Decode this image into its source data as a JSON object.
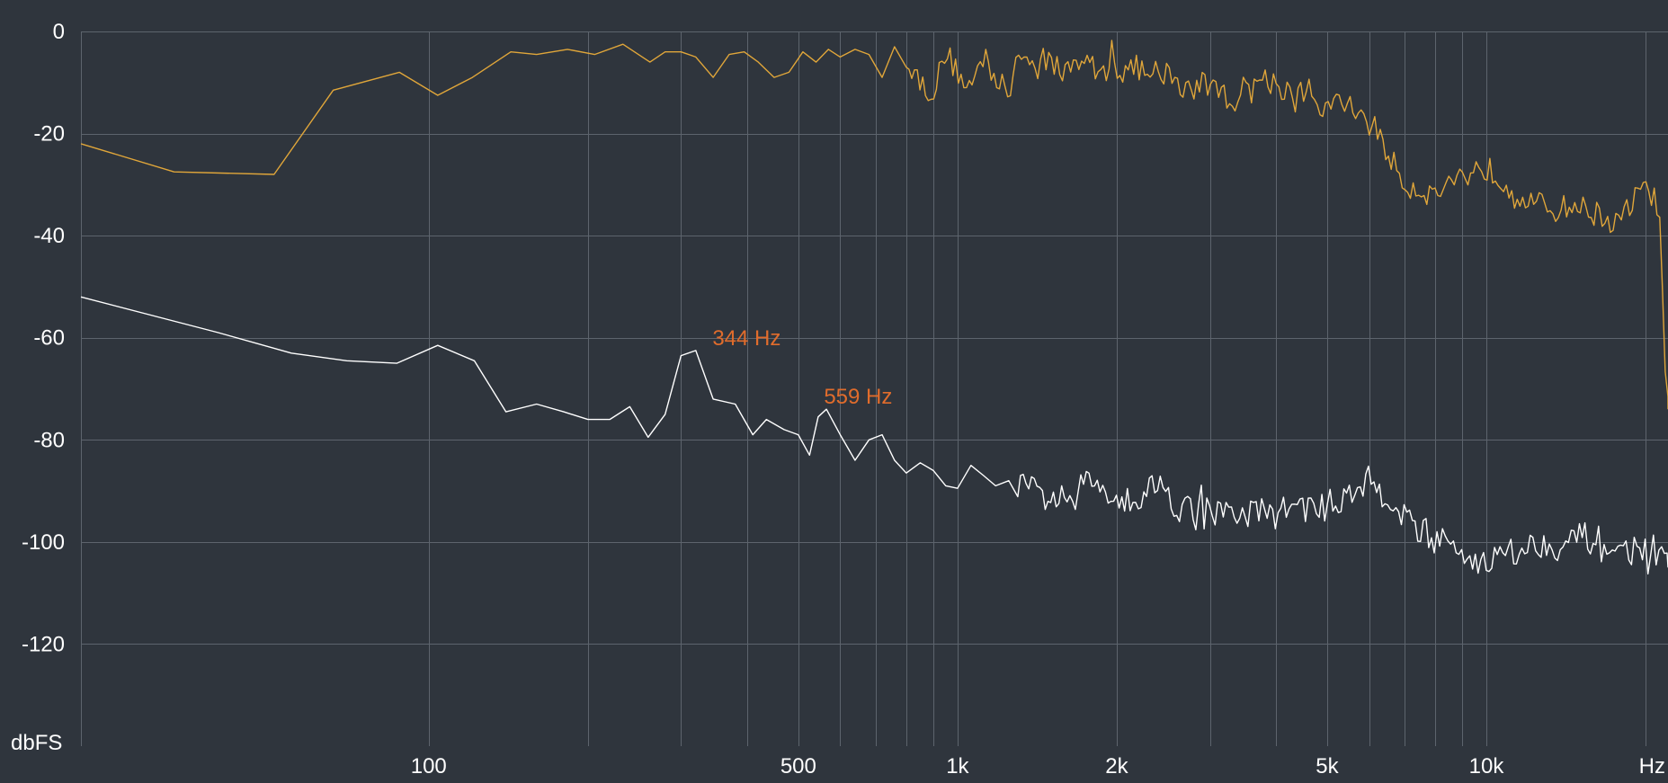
{
  "chart_data": {
    "type": "line",
    "x_scale": "log",
    "xlim": [
      22,
      22050
    ],
    "ylim": [
      -140,
      0
    ],
    "grid": true,
    "y_unit": "dbFS",
    "x_unit": "Hz",
    "x_ticks": [
      {
        "value": 100,
        "label": "100"
      },
      {
        "value": 500,
        "label": "500"
      },
      {
        "value": 1000,
        "label": "1k"
      },
      {
        "value": 2000,
        "label": "2k"
      },
      {
        "value": 5000,
        "label": "5k"
      },
      {
        "value": 10000,
        "label": "10k"
      }
    ],
    "x_grid": [
      100,
      200,
      300,
      400,
      500,
      600,
      700,
      800,
      900,
      1000,
      2000,
      3000,
      4000,
      5000,
      6000,
      7000,
      8000,
      9000,
      10000,
      20000
    ],
    "y_ticks": [
      {
        "value": 0,
        "label": "0"
      },
      {
        "value": -20,
        "label": "-20"
      },
      {
        "value": -40,
        "label": "-40"
      },
      {
        "value": -60,
        "label": "-60"
      },
      {
        "value": -80,
        "label": "-80"
      },
      {
        "value": -100,
        "label": "-100"
      },
      {
        "value": -120,
        "label": "-120"
      }
    ],
    "series": [
      {
        "color": "#e0a63a",
        "values": [
          [
            22,
            -22
          ],
          [
            33,
            -27.5
          ],
          [
            51,
            -28
          ],
          [
            66,
            -11.5
          ],
          [
            88,
            -8
          ],
          [
            104,
            -12.5
          ],
          [
            121,
            -9
          ],
          [
            143,
            -4
          ],
          [
            160,
            -4.5
          ],
          [
            183,
            -3.5
          ],
          [
            206,
            -4.5
          ],
          [
            233,
            -2.5
          ],
          [
            262,
            -6
          ],
          [
            280,
            -4
          ],
          [
            300,
            -4
          ],
          [
            320,
            -5
          ],
          [
            345,
            -9
          ],
          [
            370,
            -4.5
          ],
          [
            395,
            -4
          ],
          [
            420,
            -6
          ],
          [
            450,
            -9
          ],
          [
            480,
            -8
          ],
          [
            510,
            -4
          ],
          [
            540,
            -6
          ],
          [
            570,
            -3.5
          ],
          [
            600,
            -5
          ],
          [
            640,
            -3.5
          ],
          [
            680,
            -4.5
          ],
          [
            720,
            -9
          ],
          [
            760,
            -3
          ],
          [
            800,
            -5
          ],
          [
            850,
            -10
          ],
          [
            900,
            -12
          ],
          [
            950,
            -4
          ],
          [
            1000,
            -8
          ],
          [
            1060,
            -11
          ],
          [
            1120,
            -5
          ],
          [
            1180,
            -9
          ],
          [
            1250,
            -12
          ],
          [
            1320,
            -4
          ],
          [
            1400,
            -7
          ],
          [
            1480,
            -5
          ],
          [
            1560,
            -8
          ],
          [
            1650,
            -7
          ],
          [
            1750,
            -5
          ],
          [
            1850,
            -9
          ],
          [
            1950,
            -6
          ],
          [
            2050,
            -8
          ],
          [
            2200,
            -7
          ],
          [
            2350,
            -10
          ],
          [
            2500,
            -8
          ],
          [
            2700,
            -12
          ],
          [
            2900,
            -10
          ],
          [
            3100,
            -11
          ],
          [
            3300,
            -14
          ],
          [
            3550,
            -10
          ],
          [
            3800,
            -9
          ],
          [
            4100,
            -11
          ],
          [
            4400,
            -12
          ],
          [
            4700,
            -14
          ],
          [
            5000,
            -15
          ],
          [
            5400,
            -14
          ],
          [
            5800,
            -16
          ],
          [
            6200,
            -20
          ],
          [
            6600,
            -25
          ],
          [
            7000,
            -30
          ],
          [
            7500,
            -31
          ],
          [
            8000,
            -32
          ],
          [
            8600,
            -29
          ],
          [
            9200,
            -28
          ],
          [
            9800,
            -26
          ],
          [
            10400,
            -28
          ],
          [
            11000,
            -30
          ],
          [
            11800,
            -33
          ],
          [
            12600,
            -34
          ],
          [
            13500,
            -35
          ],
          [
            14500,
            -34
          ],
          [
            15500,
            -35
          ],
          [
            16500,
            -36
          ],
          [
            17500,
            -38
          ],
          [
            18500,
            -35
          ],
          [
            19500,
            -31
          ],
          [
            20500,
            -32
          ],
          [
            21200,
            -34
          ],
          [
            21600,
            -55
          ],
          [
            21900,
            -72
          ],
          [
            22050,
            -74
          ]
        ],
        "noise": 2.5,
        "noise_from": 800,
        "noise_step": 1.012
      },
      {
        "color": "#ffffff",
        "values": [
          [
            22,
            -52
          ],
          [
            40,
            -59
          ],
          [
            55,
            -63
          ],
          [
            70,
            -64.5
          ],
          [
            87,
            -65
          ],
          [
            104,
            -61.5
          ],
          [
            122,
            -64.5
          ],
          [
            140,
            -74.5
          ],
          [
            160,
            -73
          ],
          [
            180,
            -74.5
          ],
          [
            200,
            -76
          ],
          [
            220,
            -76
          ],
          [
            240,
            -73.5
          ],
          [
            260,
            -79.5
          ],
          [
            280,
            -75
          ],
          [
            300,
            -63.5
          ],
          [
            320,
            -62.5
          ],
          [
            345,
            -72
          ],
          [
            380,
            -73
          ],
          [
            410,
            -79
          ],
          [
            435,
            -76
          ],
          [
            470,
            -78
          ],
          [
            500,
            -79
          ],
          [
            525,
            -83
          ],
          [
            545,
            -75.5
          ],
          [
            565,
            -74
          ],
          [
            600,
            -79
          ],
          [
            640,
            -84
          ],
          [
            680,
            -80
          ],
          [
            720,
            -79
          ],
          [
            760,
            -84
          ],
          [
            800,
            -86.5
          ],
          [
            850,
            -84.5
          ],
          [
            900,
            -86
          ],
          [
            950,
            -89
          ],
          [
            1000,
            -89.5
          ],
          [
            1060,
            -85
          ],
          [
            1120,
            -87
          ],
          [
            1180,
            -89
          ],
          [
            1250,
            -88
          ],
          [
            1350,
            -89.5
          ],
          [
            1450,
            -91
          ],
          [
            1550,
            -91.5
          ],
          [
            1650,
            -92.5
          ],
          [
            1750,
            -88
          ],
          [
            1850,
            -88.5
          ],
          [
            2000,
            -91
          ],
          [
            2200,
            -91.5
          ],
          [
            2400,
            -88
          ],
          [
            2600,
            -93
          ],
          [
            2800,
            -93.5
          ],
          [
            3000,
            -94
          ],
          [
            3300,
            -95
          ],
          [
            3600,
            -94
          ],
          [
            4000,
            -94.5
          ],
          [
            4400,
            -92.5
          ],
          [
            4800,
            -94
          ],
          [
            5200,
            -92
          ],
          [
            5600,
            -90
          ],
          [
            6000,
            -88
          ],
          [
            6500,
            -91
          ],
          [
            7000,
            -95
          ],
          [
            7600,
            -98
          ],
          [
            8200,
            -100
          ],
          [
            9000,
            -102
          ],
          [
            10000,
            -104
          ],
          [
            11000,
            -102
          ],
          [
            12000,
            -101
          ],
          [
            13000,
            -100
          ],
          [
            14000,
            -101
          ],
          [
            15000,
            -99
          ],
          [
            16500,
            -100
          ],
          [
            18000,
            -102
          ],
          [
            20000,
            -101
          ],
          [
            22050,
            -105
          ]
        ],
        "noise": 3,
        "noise_from": 1300,
        "noise_step": 1.012
      }
    ],
    "annotations": [
      {
        "text": "344 Hz",
        "x": 344,
        "y": -62.5,
        "color": "#e06c2c"
      },
      {
        "text": "559 Hz",
        "x": 559,
        "y": -74,
        "color": "#e06c2c"
      }
    ]
  }
}
